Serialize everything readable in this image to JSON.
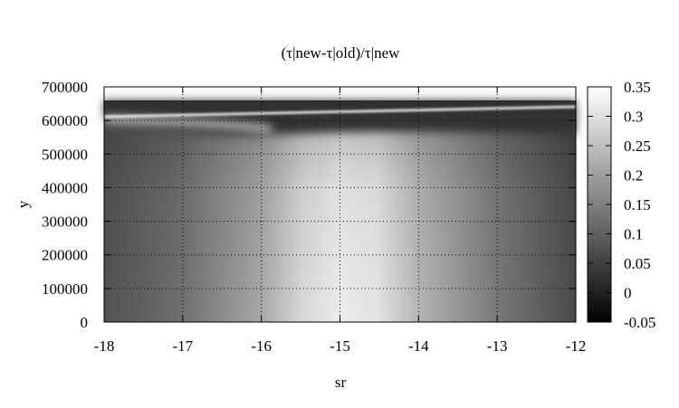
{
  "chart_data": {
    "type": "heatmap",
    "title": "(τ|new-τ|old)/τ|new",
    "xlabel": "sr",
    "ylabel": "y",
    "xlim": [
      -18,
      -12
    ],
    "ylim": [
      0,
      700000
    ],
    "x_ticks": [
      "-18",
      "-17",
      "-16",
      "-15",
      "-14",
      "-13",
      "-12"
    ],
    "y_ticks": [
      "0",
      "100000",
      "200000",
      "300000",
      "400000",
      "500000",
      "600000",
      "700000"
    ],
    "colorbar": {
      "range": [
        -0.05,
        0.35
      ],
      "ticks": [
        "-0.05",
        "0",
        "0.05",
        "0.1",
        "0.15",
        "0.2",
        "0.25",
        "0.3",
        "0.35"
      ],
      "colormap": "grayscale",
      "low_color": "#000000",
      "high_color": "#ffffff"
    },
    "grid": true,
    "grid_style": "dotted",
    "data_extent_y": [
      0,
      660000
    ],
    "approx_values": {
      "x": [
        -18,
        -17,
        -16,
        -15.5,
        -15,
        -14.5,
        -14,
        -13,
        -12
      ],
      "value_at_y_0": [
        0.06,
        0.09,
        0.16,
        0.26,
        0.32,
        0.32,
        0.23,
        0.12,
        0.05
      ],
      "value_at_y_500000": [
        0.05,
        0.1,
        0.2,
        0.27,
        0.28,
        0.22,
        0.14,
        0.07,
        0.04
      ],
      "value_near_y_650000": [
        0.02,
        0.02,
        0.02,
        0.02,
        0.02,
        0.02,
        0.02,
        0.02,
        0.02
      ],
      "bright_ridge_y": [
        598000,
        604000,
        610000,
        614000,
        618000,
        622000,
        626000,
        630000,
        636000
      ]
    }
  }
}
